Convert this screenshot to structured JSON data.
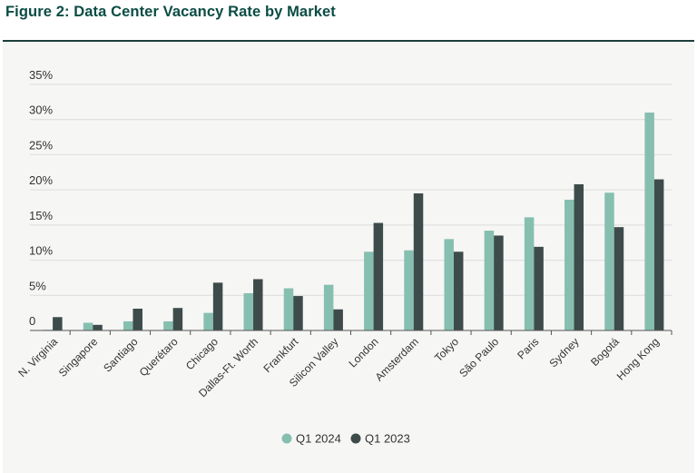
{
  "figure_title": "Figure 2: Data Center Vacancy Rate by Market",
  "colors": {
    "title": "#0b4c44",
    "series_q1_2024": "#86bfb0",
    "series_q1_2023": "#3d4c4a",
    "grid": "#dcdcdc",
    "axis": "#555555",
    "panel": "#f6f6f5"
  },
  "chart_data": {
    "type": "bar",
    "title": "",
    "xlabel": "",
    "ylabel": "",
    "ylim": [
      0,
      35
    ],
    "y_ticks": [
      0,
      5,
      10,
      15,
      20,
      25,
      30,
      35
    ],
    "y_tick_labels": [
      "0",
      "5%",
      "10%",
      "15%",
      "20%",
      "25%",
      "30%",
      "35%"
    ],
    "grid": true,
    "legend_position": "bottom-center",
    "categories": [
      "N. Virginia",
      "Singapore",
      "Santiago",
      "Querétaro",
      "Chicago",
      "Dallas-Ft. Worth",
      "Frankfurt",
      "Silicon Valley",
      "London",
      "Amsterdam",
      "Tokyo",
      "São Paulo",
      "Paris",
      "Sydney",
      "Bogotá",
      "Hong Kong"
    ],
    "series": [
      {
        "name": "Q1 2024",
        "values": [
          0.1,
          1.1,
          1.3,
          1.3,
          2.5,
          5.3,
          6.0,
          6.5,
          11.2,
          11.4,
          13.0,
          14.2,
          16.1,
          18.6,
          19.6,
          31.0
        ]
      },
      {
        "name": "Q1 2023",
        "values": [
          1.9,
          0.8,
          3.1,
          3.2,
          6.8,
          7.3,
          4.9,
          3.0,
          15.3,
          19.5,
          11.2,
          13.5,
          11.9,
          20.8,
          14.7,
          21.5
        ]
      }
    ]
  }
}
